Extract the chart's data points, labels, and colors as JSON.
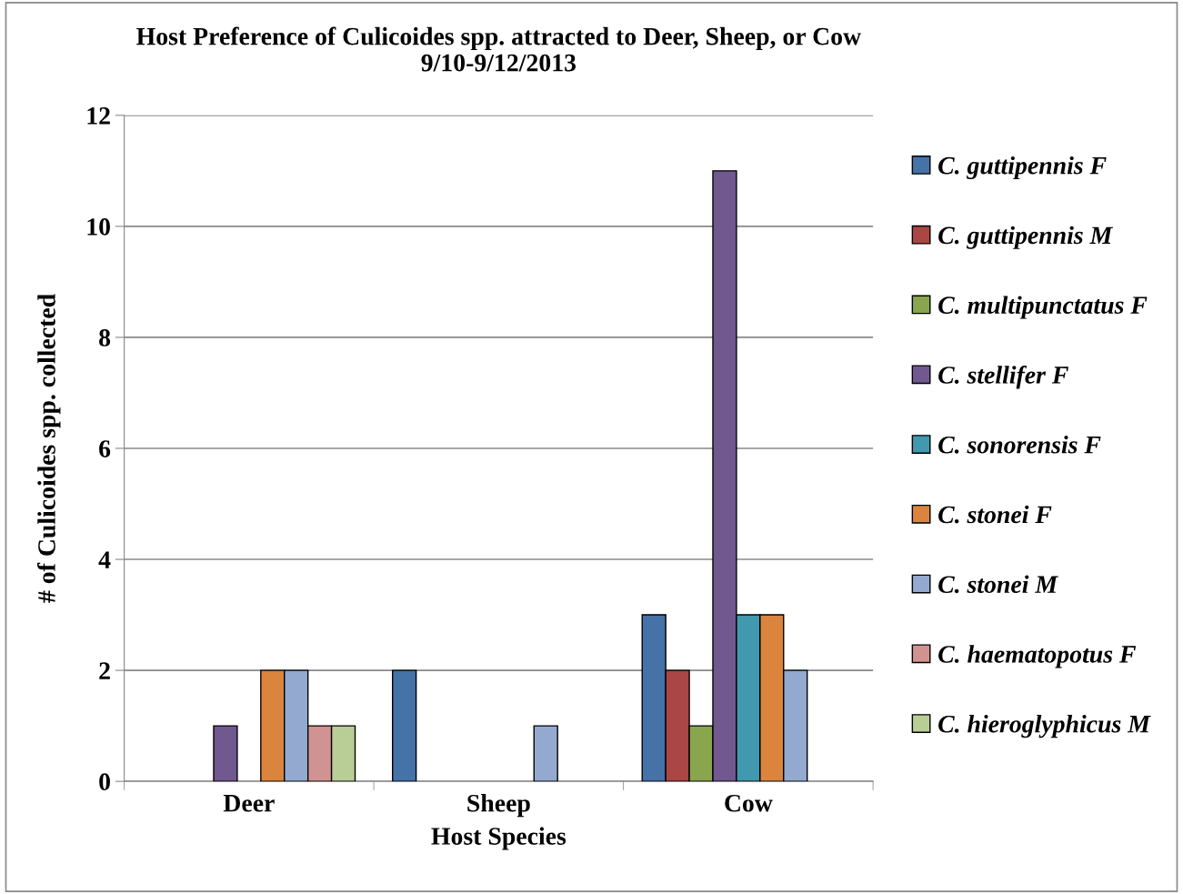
{
  "chart_data": {
    "type": "bar",
    "title": "Host Preference of Culicoides spp. attracted to Deer, Sheep, or Cow\n9/10-9/12/2013",
    "xlabel": "Host Species",
    "ylabel": "# of Culicoides spp. collected",
    "categories": [
      "Deer",
      "Sheep",
      "Cow"
    ],
    "series": [
      {
        "name": "C. guttipennis F",
        "color": "#4572a7",
        "values": [
          0,
          2,
          3
        ]
      },
      {
        "name": "C. guttipennis M",
        "color": "#aa4643",
        "values": [
          0,
          0,
          2
        ]
      },
      {
        "name": "C. multipunctatus F",
        "color": "#89a54e",
        "values": [
          0,
          0,
          1
        ]
      },
      {
        "name": "C. stellifer F",
        "color": "#71588f",
        "values": [
          1,
          0,
          11
        ]
      },
      {
        "name": "C. sonorensis F",
        "color": "#4198af",
        "values": [
          0,
          0,
          3
        ]
      },
      {
        "name": "C. stonei F",
        "color": "#db843d",
        "values": [
          2,
          0,
          3
        ]
      },
      {
        "name": "C. stonei M",
        "color": "#93a9cf",
        "values": [
          2,
          1,
          2
        ]
      },
      {
        "name": "C. haematopotus F",
        "color": "#d19392",
        "values": [
          1,
          0,
          0
        ]
      },
      {
        "name": "C. hieroglyphicus M",
        "color": "#b9cd96",
        "values": [
          1,
          0,
          0
        ]
      }
    ],
    "ylim": [
      0,
      12
    ],
    "yticks": [
      0,
      2,
      4,
      6,
      8,
      10,
      12
    ],
    "grid": "y",
    "legend": "right"
  }
}
